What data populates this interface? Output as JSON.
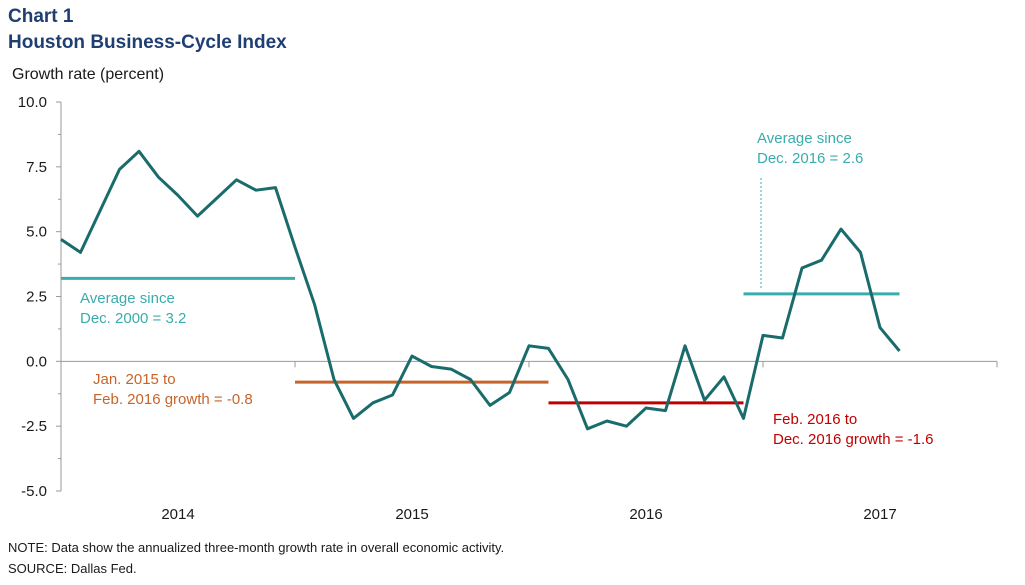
{
  "header": {
    "chart_label": "Chart 1",
    "title": "Houston Business-Cycle Index"
  },
  "footer": {
    "note": "NOTE: Data show the annualized three-month growth rate in overall economic activity.",
    "source": "SOURCE: Dallas Fed."
  },
  "colors": {
    "series": "#1a6b6b",
    "avg_2000": "#3aacac",
    "jan2015_feb2016": "#c8642a",
    "feb2016_dec2016": "#c00000",
    "axis": "#9a9a9a"
  },
  "chart_data": {
    "type": "line",
    "title": "Houston Business-Cycle Index",
    "ylabel": "Growth rate (percent)",
    "ylim": [
      -5,
      10
    ],
    "yticks": [
      "10.0",
      "7.5",
      "5.0",
      "2.5",
      "0.0",
      "-2.5",
      "-5.0"
    ],
    "ytick_values": [
      10,
      7.5,
      5,
      2.5,
      0,
      -2.5,
      -5
    ],
    "xlim": [
      0,
      48
    ],
    "year_labels": [
      "2014",
      "2015",
      "2016",
      "2017"
    ],
    "grid": false,
    "series": [
      {
        "values": [
          4.7,
          4.2,
          5.8,
          7.4,
          8.1,
          7.1,
          6.4,
          5.6,
          6.3,
          7.0,
          6.6,
          6.7,
          4.4,
          2.2,
          -0.7,
          -2.2,
          -1.6,
          -1.3,
          0.2,
          -0.2,
          -0.3,
          -0.7,
          -1.7,
          -1.2,
          0.6,
          0.5,
          -0.7,
          -2.6,
          -2.3,
          -2.5,
          -1.8,
          -1.9,
          0.6,
          -1.5,
          -0.6,
          -2.2,
          1.0,
          0.9,
          3.6,
          3.9,
          5.1,
          4.2,
          1.3,
          0.4
        ]
      }
    ],
    "averages": [
      {
        "label_line1": "Average since",
        "label_line2": "Dec. 2000 = 3.2",
        "value": 3.2,
        "x_start": 0,
        "x_end": 12,
        "color": "#3aacac"
      },
      {
        "label_line1": "Jan. 2015 to",
        "label_line2": "Feb. 2016 growth = -0.8",
        "value": -0.8,
        "x_start": 12,
        "x_end": 25,
        "color": "#c8642a"
      },
      {
        "label_line1": "Feb. 2016 to",
        "label_line2": "Dec. 2016 growth = -1.6",
        "value": -1.6,
        "x_start": 25,
        "x_end": 35,
        "color": "#c00000"
      },
      {
        "label_line1": "Average since",
        "label_line2": "Dec. 2016 = 2.6",
        "value": 2.6,
        "x_start": 35,
        "x_end": 43,
        "color": "#3aacac"
      }
    ]
  }
}
